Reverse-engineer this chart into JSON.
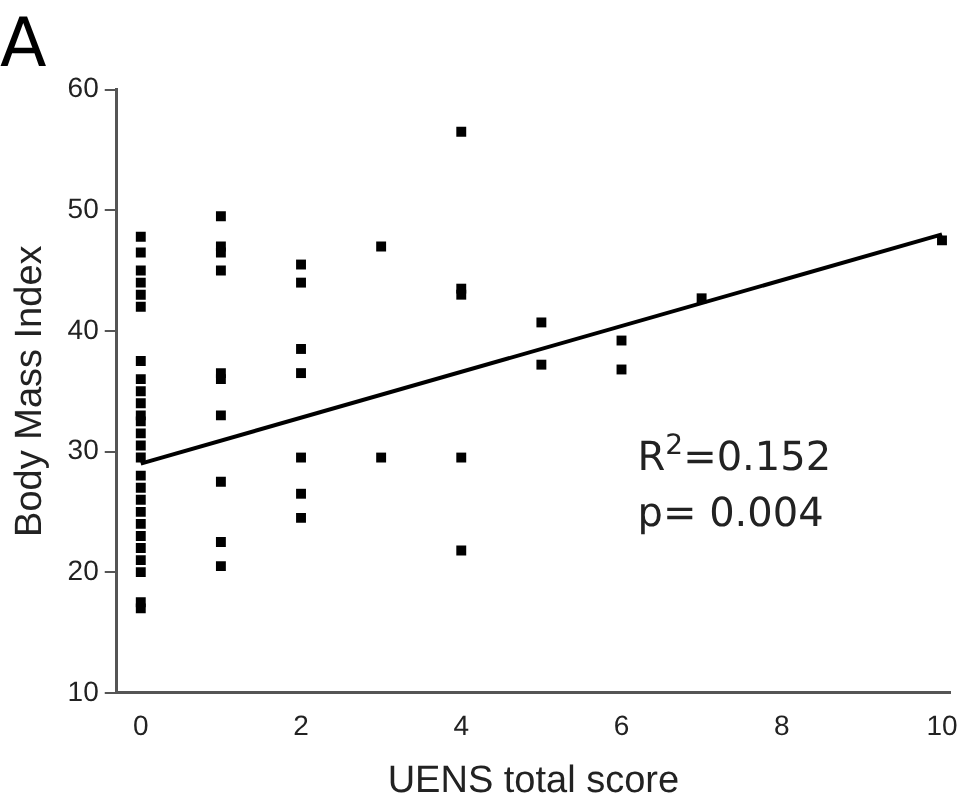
{
  "chart_data": {
    "type": "scatter",
    "title": "A",
    "xlabel": "UENS total score",
    "ylabel": "Body Mass Index",
    "annotations": [
      "R$^{2}$=0.152",
      "p= 0.004"
    ],
    "xlim": [
      -0.3,
      10.1
    ],
    "ylim": [
      10,
      60
    ],
    "xticks": [
      0,
      2,
      4,
      6,
      8,
      10
    ],
    "yticks": [
      10,
      20,
      30,
      40,
      50,
      60
    ],
    "grid": false,
    "legend": false,
    "marker": "square",
    "series": [
      {
        "color": "#000000",
        "x": [
          0,
          0,
          0,
          0,
          0,
          0,
          0,
          0,
          0,
          0,
          0,
          0,
          0,
          0,
          0,
          0,
          0,
          0,
          0,
          0,
          0,
          0,
          0,
          0,
          0,
          0,
          1,
          1,
          1,
          1,
          1,
          1,
          1,
          1,
          1,
          1,
          2,
          2,
          2,
          2,
          2,
          2,
          2,
          3,
          3,
          4,
          4,
          4,
          4,
          4,
          5,
          5,
          6,
          6,
          7,
          10
        ],
        "values": [
          47.8,
          46.5,
          45,
          44,
          43,
          42,
          37.5,
          36,
          35,
          34,
          33,
          32.5,
          31.5,
          30.5,
          29.5,
          28,
          27,
          26,
          25,
          24,
          23,
          22,
          21,
          20,
          17.5,
          17,
          49.5,
          47,
          46.5,
          45,
          36.5,
          36,
          33,
          27.5,
          22.5,
          20.5,
          45.5,
          44,
          38.5,
          36.5,
          29.5,
          26.5,
          24.5,
          47,
          29.5,
          56.5,
          43.5,
          43,
          29.5,
          21.8,
          40.7,
          37.2,
          39.2,
          36.8,
          42.7,
          47.5
        ]
      },
      {
        "type": "line",
        "color": "#000000",
        "marker": "none",
        "x": [
          0,
          10
        ],
        "values": [
          29,
          48
        ]
      }
    ]
  }
}
